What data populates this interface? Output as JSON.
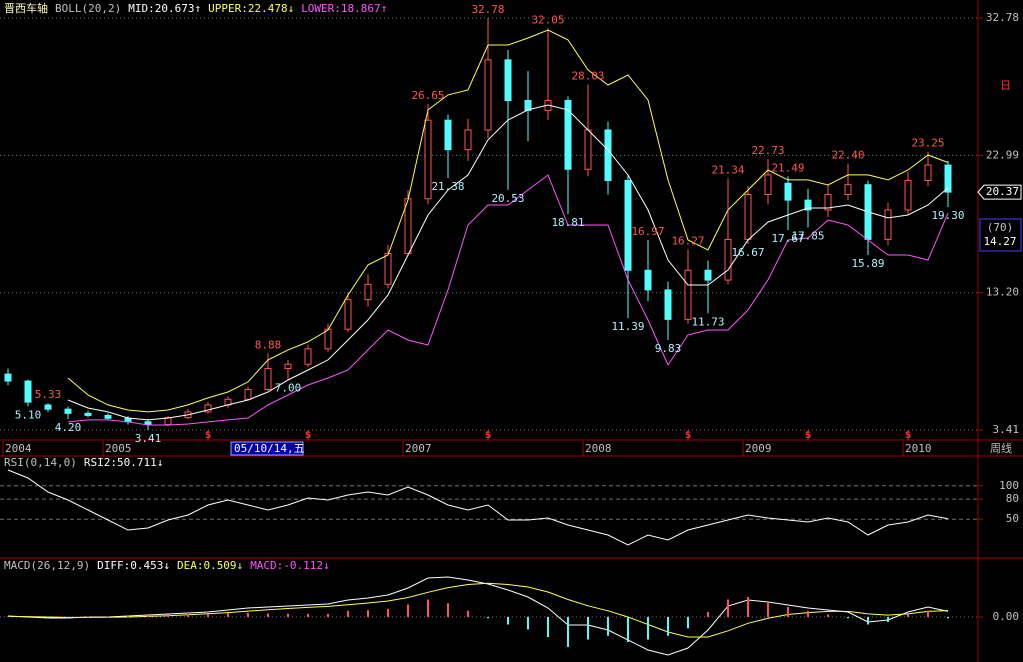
{
  "chart_data": [
    {
      "type": "candlestick",
      "title": "晋西车轴",
      "indicator": "BOLL(20,2)",
      "categories": [
        "2004",
        null,
        null,
        null,
        null,
        "2005",
        null,
        null,
        null,
        null,
        null,
        null,
        null,
        null,
        null,
        null,
        null,
        null,
        null,
        null,
        "2007",
        null,
        null,
        null,
        null,
        null,
        null,
        null,
        null,
        "2008",
        null,
        null,
        null,
        null,
        null,
        null,
        null,
        "2009",
        null,
        null,
        null,
        null,
        null,
        null,
        null,
        "2010",
        null,
        null
      ],
      "open": [
        7.4,
        6.9,
        5.2,
        4.9,
        4.6,
        4.45,
        4.25,
        4.0,
        3.8,
        4.3,
        4.7,
        5.2,
        5.6,
        6.3,
        7.8,
        8.1,
        9.2,
        10.6,
        12.7,
        13.8,
        16.0,
        19.9,
        25.5,
        23.4,
        24.8,
        29.8,
        26.9,
        26.2,
        26.9,
        22.0,
        24.8,
        21.2,
        14.8,
        13.4,
        11.3,
        14.8,
        14.1,
        17.0,
        20.2,
        21.0,
        19.8,
        19.1,
        20.2,
        20.9,
        17.0,
        19.1,
        21.2,
        22.3
      ],
      "high": [
        7.8,
        7.0,
        5.33,
        5.1,
        4.8,
        4.6,
        4.4,
        4.2,
        4.4,
        4.9,
        5.4,
        5.8,
        6.5,
        8.88,
        8.4,
        9.5,
        11.0,
        13.2,
        14.5,
        16.6,
        20.5,
        26.65,
        25.9,
        25.6,
        32.78,
        30.5,
        29.0,
        32.05,
        27.2,
        28.03,
        25.4,
        21.6,
        16.97,
        14.0,
        16.27,
        15.5,
        21.34,
        20.8,
        22.73,
        21.49,
        20.6,
        20.9,
        22.4,
        21.2,
        19.6,
        21.8,
        23.25,
        22.6
      ],
      "low": [
        6.6,
        5.1,
        4.7,
        4.2,
        4.3,
        4.1,
        3.8,
        3.41,
        3.7,
        4.2,
        4.6,
        5.0,
        5.5,
        6.2,
        7.0,
        7.9,
        9.0,
        10.4,
        12.2,
        13.5,
        15.8,
        19.5,
        21.38,
        22.6,
        24.2,
        20.53,
        24.0,
        25.5,
        18.81,
        21.5,
        20.2,
        11.39,
        12.6,
        9.83,
        11.0,
        11.73,
        13.8,
        16.67,
        19.5,
        17.67,
        17.85,
        18.6,
        19.8,
        15.89,
        16.6,
        18.8,
        20.8,
        19.3
      ],
      "close": [
        6.9,
        5.4,
        4.9,
        4.6,
        4.45,
        4.25,
        4.0,
        3.8,
        4.3,
        4.7,
        5.2,
        5.6,
        6.3,
        7.8,
        8.1,
        9.2,
        10.6,
        12.7,
        13.8,
        16.0,
        19.9,
        25.5,
        23.4,
        24.8,
        29.8,
        26.9,
        26.2,
        26.9,
        22.0,
        24.8,
        21.2,
        14.8,
        13.4,
        11.3,
        14.8,
        14.1,
        17.0,
        20.2,
        21.6,
        19.8,
        19.1,
        20.2,
        20.9,
        17.0,
        19.1,
        21.2,
        22.3,
        20.37
      ],
      "up_color": "#ff5454",
      "down_color": "#54fcfc",
      "series": [
        {
          "name": "MID:20.673↑",
          "color": "#ffffff",
          "values": [
            null,
            null,
            null,
            5.55,
            4.98,
            4.7,
            4.27,
            4.13,
            4.27,
            4.49,
            4.84,
            5.2,
            5.55,
            6.12,
            6.98,
            7.69,
            8.41,
            9.83,
            11.26,
            13.04,
            15.89,
            18.74,
            20.52,
            21.59,
            24.09,
            25.51,
            26.23,
            26.58,
            26.23,
            24.8,
            23.37,
            21.59,
            19.1,
            15.53,
            13.75,
            13.75,
            14.82,
            16.96,
            18.24,
            18.74,
            19.24,
            19.24,
            19.45,
            18.96,
            18.53,
            18.74,
            19.45,
            20.67
          ]
        },
        {
          "name": "UPPER:22.478↓",
          "color": "#ffff54",
          "values": [
            null,
            null,
            null,
            7.12,
            5.91,
            5.2,
            4.84,
            4.7,
            4.84,
            5.2,
            5.7,
            6.12,
            6.84,
            8.41,
            9.12,
            9.69,
            10.54,
            13.04,
            15.18,
            15.89,
            19.81,
            26.23,
            27.3,
            27.65,
            30.86,
            30.86,
            31.36,
            31.93,
            31.22,
            29.08,
            28.01,
            28.72,
            26.94,
            21.24,
            16.96,
            16.25,
            19.1,
            20.52,
            21.95,
            21.24,
            21.24,
            20.88,
            21.6,
            21.6,
            21.24,
            21.95,
            23.02,
            22.48
          ]
        },
        {
          "name": "LOWER:18.867↑",
          "color": "#ff54ff",
          "values": [
            null,
            null,
            null,
            3.99,
            4.13,
            4.13,
            3.99,
            3.77,
            3.77,
            3.84,
            3.99,
            4.13,
            4.27,
            5.2,
            5.91,
            6.62,
            7.12,
            7.69,
            9.12,
            10.54,
            9.83,
            9.47,
            13.4,
            18.03,
            19.45,
            19.45,
            20.52,
            21.59,
            18.03,
            18.03,
            18.03,
            14.11,
            11.26,
            8.05,
            10.19,
            10.54,
            10.54,
            11.97,
            14.11,
            16.96,
            17.1,
            18.38,
            18.03,
            16.96,
            15.89,
            15.89,
            15.53,
            18.87
          ]
        }
      ],
      "high_labels": [
        5.33,
        8.88,
        26.65,
        32.78,
        32.05,
        28.03,
        16.97,
        16.27,
        21.34,
        22.73,
        21.49,
        {
          "value": 22.4,
          "label": "22.40"
        },
        23.25
      ],
      "low_labels": [
        {
          "value": 5.1,
          "label": "5.10"
        },
        {
          "value": 4.2,
          "label": "4.20"
        },
        3.41,
        {
          "value": 7.0,
          "label": "7.00"
        },
        21.38,
        20.53,
        18.81,
        11.39,
        9.83,
        11.73,
        16.67,
        17.67,
        17.85,
        15.89,
        {
          "value": 19.3,
          "label": "19.30"
        }
      ],
      "signals": [
        null,
        null,
        null,
        null,
        null,
        null,
        null,
        null,
        null,
        null,
        "$",
        null,
        null,
        null,
        null,
        "$",
        null,
        null,
        null,
        null,
        null,
        null,
        null,
        null,
        "$",
        null,
        null,
        null,
        null,
        null,
        null,
        null,
        null,
        null,
        "$",
        null,
        null,
        null,
        null,
        null,
        "$",
        null,
        null,
        null,
        null,
        "$",
        null,
        null
      ],
      "ylim": [
        2.7,
        33.71
      ],
      "yticks": [
        3.41,
        {
          "value": 13.2,
          "label": "13.20"
        },
        22.99,
        32.78
      ],
      "grid": true,
      "last_price": 20.37,
      "info_box": [
        "(70)",
        "14.27"
      ],
      "marker": "日",
      "cursor_label": "05/10/14,五",
      "period": "周线"
    },
    {
      "type": "line",
      "title": "RSI(0,14,0)",
      "series": [
        {
          "name": "RSI2:50.711↓",
          "color": "#ffffff",
          "values": [
            123.6,
            111.6,
            90.7,
            78.7,
            63.8,
            48.8,
            33.9,
            36.9,
            48.8,
            56.3,
            71.2,
            78.7,
            71.2,
            63.8,
            71.2,
            81.7,
            78.7,
            86.2,
            90.7,
            86.2,
            98.1,
            86.2,
            71.2,
            63.8,
            71.2,
            48.8,
            48.8,
            51.8,
            41.3,
            33.9,
            26.4,
            11.4,
            26.4,
            18.9,
            33.9,
            41.3,
            48.8,
            56.3,
            51.8,
            48.8,
            45.8,
            51.8,
            45.8,
            26.4,
            41.3,
            45.8,
            56.3,
            50.71
          ]
        }
      ],
      "ylim": [
        -5,
        140
      ],
      "yticks": [
        50,
        80,
        100
      ],
      "grid": true
    },
    {
      "type": "macd",
      "title": "MACD(26,12,9)",
      "series": [
        {
          "name": "DIFF:0.453↓",
          "color": "#ffffff",
          "values": [
            0.08,
            0,
            -0.08,
            -0.08,
            0,
            0,
            0.08,
            0.16,
            0.24,
            0.32,
            0.4,
            0.56,
            0.72,
            0.8,
            0.88,
            0.96,
            1.04,
            1.36,
            1.52,
            1.76,
            2.32,
            3.12,
            3.2,
            2.96,
            2.64,
            2.16,
            1.6,
            0.72,
            -0.64,
            -0.64,
            -1.04,
            -1.84,
            -2.64,
            -3.04,
            -2.48,
            -1.04,
            0.88,
            1.36,
            1.2,
            0.96,
            0.72,
            0.56,
            0.4,
            -0.4,
            -0.24,
            0.4,
            0.8,
            0.45
          ]
        },
        {
          "name": "DEA:0.509↓",
          "color": "#ffff54",
          "values": [
            0.05,
            0.03,
            0,
            -0.03,
            -0.03,
            -0.02,
            0,
            0.05,
            0.1,
            0.18,
            0.26,
            0.35,
            0.47,
            0.58,
            0.68,
            0.77,
            0.85,
            0.98,
            1.12,
            1.28,
            1.56,
            1.98,
            2.35,
            2.6,
            2.7,
            2.6,
            2.4,
            2.0,
            1.4,
            0.9,
            0.5,
            0.0,
            -0.6,
            -1.2,
            -1.6,
            -1.6,
            -1.1,
            -0.5,
            -0.1,
            0.2,
            0.35,
            0.45,
            0.45,
            0.25,
            0.15,
            0.25,
            0.45,
            0.51
          ]
        },
        {
          "name": "MACD:-0.112↓",
          "color": "#ff54ff",
          "up_color": "#ff5454",
          "down_color": "#54fcfc",
          "values": [
            0.05,
            -0.05,
            -0.1,
            -0.08,
            0.04,
            0.03,
            0.1,
            0.15,
            0.2,
            0.2,
            0.22,
            0.3,
            0.32,
            0.28,
            0.26,
            0.25,
            0.25,
            0.5,
            0.55,
            0.65,
            1.0,
            1.4,
            1.1,
            0.5,
            -0.1,
            -0.6,
            -1.0,
            -1.6,
            -2.4,
            -1.8,
            -1.5,
            -2.0,
            -1.8,
            -1.5,
            -0.9,
            0.4,
            1.4,
            1.6,
            1.2,
            0.8,
            0.5,
            0.2,
            -0.1,
            -0.6,
            -0.4,
            0.2,
            0.5,
            -0.11
          ]
        }
      ],
      "ylim": [
        -3.6,
        4.4
      ],
      "yticks": [
        {
          "value": 0,
          "label": "0.00"
        }
      ],
      "grid": true
    }
  ]
}
